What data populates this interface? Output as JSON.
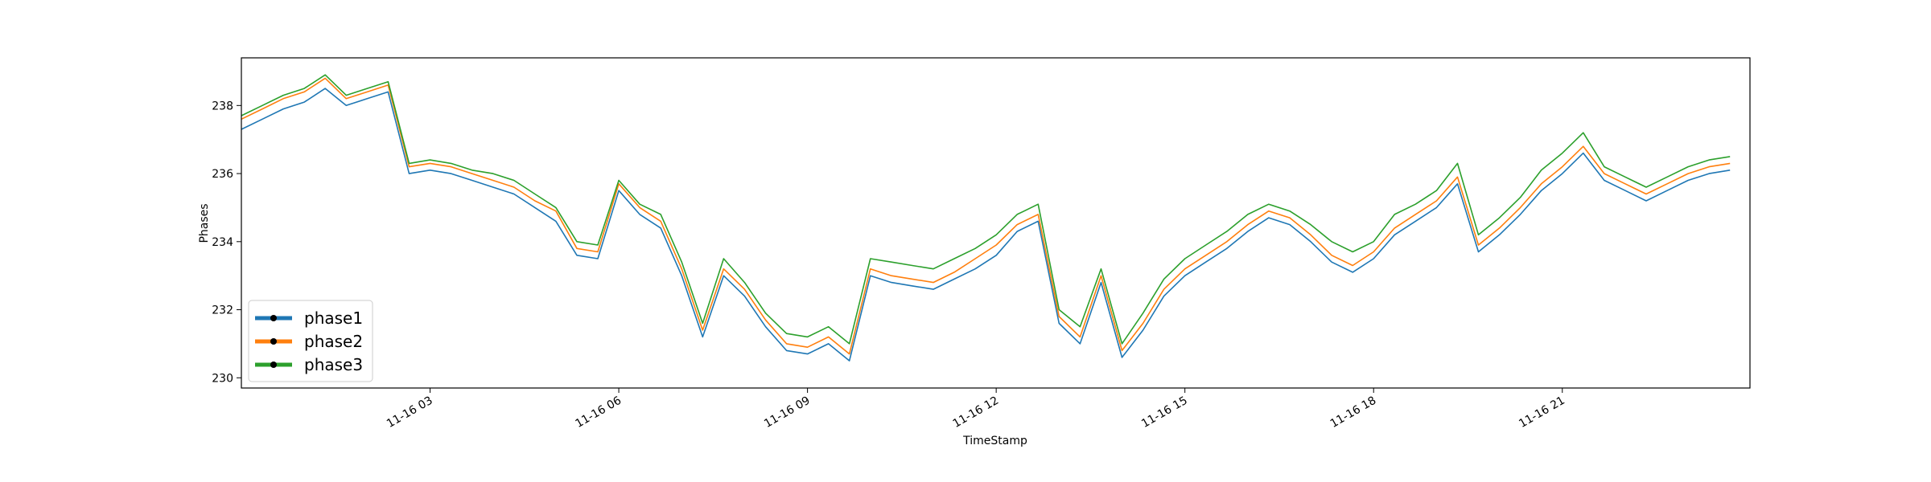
{
  "chart_data": {
    "type": "line",
    "xlabel": "TimeStamp",
    "ylabel": "Phases",
    "xlim": [
      "11-16 00:00",
      "11-16 23:59"
    ],
    "ylim": [
      229.7,
      239.4
    ],
    "x_ticks": [
      {
        "t": "11-16 03:00",
        "label": "11-16 03"
      },
      {
        "t": "11-16 06:00",
        "label": "11-16 06"
      },
      {
        "t": "11-16 09:00",
        "label": "11-16 09"
      },
      {
        "t": "11-16 12:00",
        "label": "11-16 12"
      },
      {
        "t": "11-16 15:00",
        "label": "11-16 15"
      },
      {
        "t": "11-16 18:00",
        "label": "11-16 18"
      },
      {
        "t": "11-16 21:00",
        "label": "11-16 21"
      }
    ],
    "y_ticks": [
      230,
      232,
      234,
      236,
      238
    ],
    "grid": false,
    "legend_position": "lower-left",
    "x": [
      "11-16 00:00",
      "11-16 00:20",
      "11-16 00:40",
      "11-16 01:00",
      "11-16 01:20",
      "11-16 01:40",
      "11-16 02:00",
      "11-16 02:20",
      "11-16 02:40",
      "11-16 03:00",
      "11-16 03:20",
      "11-16 03:40",
      "11-16 04:00",
      "11-16 04:20",
      "11-16 04:40",
      "11-16 05:00",
      "11-16 05:20",
      "11-16 05:40",
      "11-16 06:00",
      "11-16 06:20",
      "11-16 06:40",
      "11-16 07:00",
      "11-16 07:20",
      "11-16 07:40",
      "11-16 08:00",
      "11-16 08:20",
      "11-16 08:40",
      "11-16 09:00",
      "11-16 09:20",
      "11-16 09:40",
      "11-16 10:00",
      "11-16 10:20",
      "11-16 10:40",
      "11-16 11:00",
      "11-16 11:20",
      "11-16 11:40",
      "11-16 12:00",
      "11-16 12:20",
      "11-16 12:40",
      "11-16 13:00",
      "11-16 13:20",
      "11-16 13:40",
      "11-16 14:00",
      "11-16 14:20",
      "11-16 14:40",
      "11-16 15:00",
      "11-16 15:20",
      "11-16 15:40",
      "11-16 16:00",
      "11-16 16:20",
      "11-16 16:40",
      "11-16 17:00",
      "11-16 17:20",
      "11-16 17:40",
      "11-16 18:00",
      "11-16 18:20",
      "11-16 18:40",
      "11-16 19:00",
      "11-16 19:20",
      "11-16 19:40",
      "11-16 20:00",
      "11-16 20:20",
      "11-16 20:40",
      "11-16 21:00",
      "11-16 21:20",
      "11-16 21:40",
      "11-16 22:00",
      "11-16 22:20",
      "11-16 22:40",
      "11-16 23:00",
      "11-16 23:20",
      "11-16 23:40"
    ],
    "series": [
      {
        "name": "phase1",
        "color": "#1f77b4",
        "values": [
          237.3,
          237.6,
          237.9,
          238.1,
          238.5,
          238.0,
          238.2,
          238.4,
          236.0,
          236.1,
          236.0,
          235.8,
          235.6,
          235.4,
          235.0,
          234.6,
          233.6,
          233.5,
          235.5,
          234.8,
          234.4,
          233.0,
          231.2,
          233.0,
          232.4,
          231.5,
          230.8,
          230.7,
          231.0,
          230.5,
          233.0,
          232.8,
          232.7,
          232.6,
          232.9,
          233.2,
          233.6,
          234.3,
          234.6,
          231.6,
          231.0,
          232.8,
          230.6,
          231.4,
          232.4,
          233.0,
          233.4,
          233.8,
          234.3,
          234.7,
          234.5,
          234.0,
          233.4,
          233.1,
          233.5,
          234.2,
          234.6,
          235.0,
          235.7,
          233.7,
          234.2,
          234.8,
          235.5,
          236.0,
          236.6,
          235.8,
          235.5,
          235.2,
          235.5,
          235.8,
          236.0,
          236.1
        ]
      },
      {
        "name": "phase2",
        "color": "#ff7f0e",
        "values": [
          237.6,
          237.9,
          238.2,
          238.4,
          238.8,
          238.2,
          238.4,
          238.6,
          236.2,
          236.3,
          236.2,
          236.0,
          235.8,
          235.6,
          235.2,
          234.9,
          233.8,
          233.7,
          235.7,
          235.0,
          234.6,
          233.2,
          231.4,
          233.2,
          232.6,
          231.7,
          231.0,
          230.9,
          231.2,
          230.7,
          233.2,
          233.0,
          232.9,
          232.8,
          233.1,
          233.5,
          233.9,
          234.5,
          234.8,
          231.8,
          231.2,
          233.0,
          230.8,
          231.6,
          232.6,
          233.2,
          233.6,
          234.0,
          234.5,
          234.9,
          234.7,
          234.2,
          233.6,
          233.3,
          233.7,
          234.4,
          234.8,
          235.2,
          235.9,
          233.9,
          234.4,
          235.0,
          235.7,
          236.2,
          236.8,
          236.0,
          235.7,
          235.4,
          235.7,
          236.0,
          236.2,
          236.3
        ]
      },
      {
        "name": "phase3",
        "color": "#2ca02c",
        "values": [
          237.7,
          238.0,
          238.3,
          238.5,
          238.9,
          238.3,
          238.5,
          238.7,
          236.3,
          236.4,
          236.3,
          236.1,
          236.0,
          235.8,
          235.4,
          235.0,
          234.0,
          233.9,
          235.8,
          235.1,
          234.8,
          233.4,
          231.6,
          233.5,
          232.8,
          231.9,
          231.3,
          231.2,
          231.5,
          231.0,
          233.5,
          233.4,
          233.3,
          233.2,
          233.5,
          233.8,
          234.2,
          234.8,
          235.1,
          232.0,
          231.5,
          233.2,
          231.0,
          231.9,
          232.9,
          233.5,
          233.9,
          234.3,
          234.8,
          235.1,
          234.9,
          234.5,
          234.0,
          233.7,
          234.0,
          234.8,
          235.1,
          235.5,
          236.3,
          234.2,
          234.7,
          235.3,
          236.1,
          236.6,
          237.2,
          236.2,
          235.9,
          235.6,
          235.9,
          236.2,
          236.4,
          236.5
        ]
      }
    ]
  }
}
